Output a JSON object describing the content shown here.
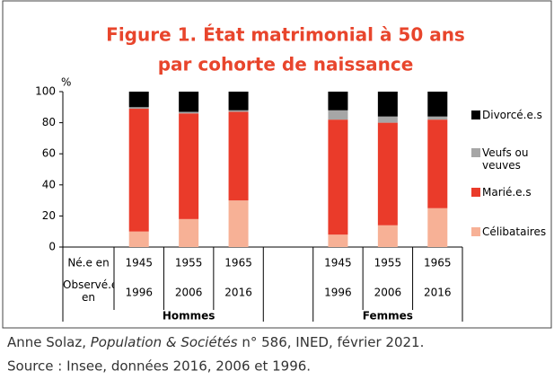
{
  "chart_data": {
    "type": "stacked_bar",
    "title": [
      "Figure 1. État matrimonial à 50 ans",
      "par cohorte de naissance"
    ],
    "y_unit": "%",
    "row_labels": [
      "Né.e en",
      "Observé.e en"
    ],
    "categories": [
      "1945",
      "1955",
      "1965",
      null,
      "1945",
      "1955",
      "1965"
    ],
    "observed": [
      "1996",
      "2006",
      "2016",
      null,
      "1996",
      "2006",
      "2016"
    ],
    "groups": [
      "Hommes",
      "Femmes"
    ],
    "series": [
      {
        "name": "Célibataires",
        "color": "#f7b196",
        "values": [
          10,
          18,
          30,
          null,
          8,
          14,
          25
        ]
      },
      {
        "name": "Marié.e.s",
        "color": "#ea3b2a",
        "values": [
          79,
          68,
          57,
          null,
          74,
          66,
          57
        ]
      },
      {
        "name": "Veufs ou veuves",
        "color": "#a6a6a6",
        "values": [
          1,
          1,
          1,
          null,
          6,
          4,
          2
        ]
      },
      {
        "name": "Divorcé.e.s",
        "color": "#000000",
        "values": [
          10,
          13,
          12,
          null,
          12,
          16,
          16
        ]
      }
    ],
    "ylim": [
      0,
      100
    ],
    "yticks": [
      0,
      20,
      40,
      60,
      80,
      100
    ],
    "source_parts": [
      "Anne Solaz, ",
      "Population & Sociétés",
      " n° 586, INED, février 2021."
    ],
    "source2": "Source : Insee, données 2016, 2006 et 1996."
  }
}
